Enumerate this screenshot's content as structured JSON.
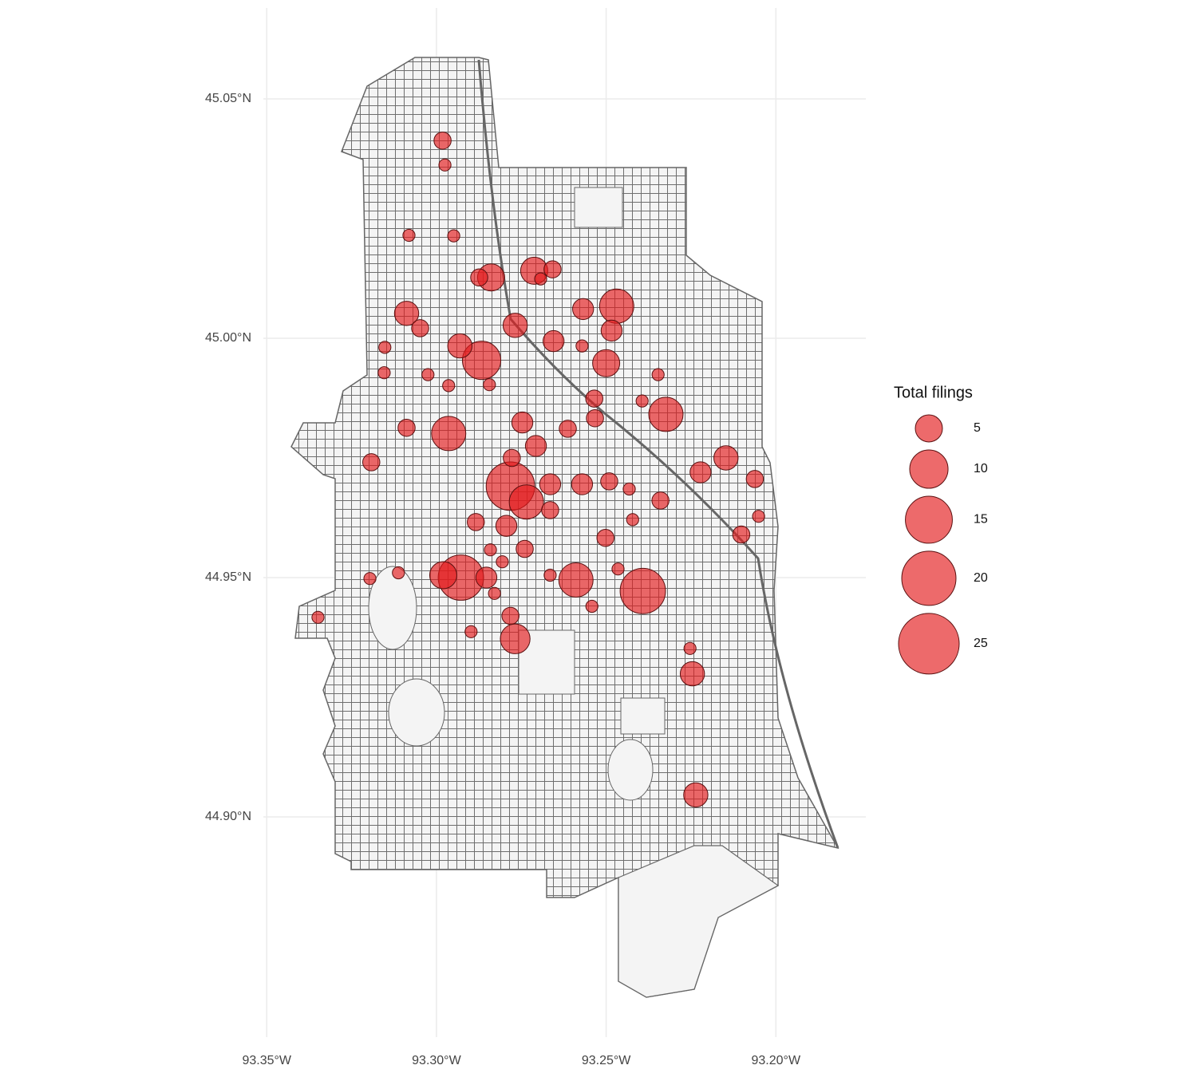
{
  "chart_data": {
    "type": "scatter",
    "x": [
      -93.2982,
      -93.2975,
      -93.3081,
      -93.2949,
      -93.2839,
      -93.2874,
      -93.2712,
      -93.2658,
      -93.2693,
      -93.2469,
      -93.2568,
      -93.3088,
      -93.3048,
      -93.2768,
      -93.2655,
      -93.2484,
      -93.2867,
      -93.2931,
      -93.25,
      -93.2571,
      -93.3152,
      -93.3154,
      -93.3025,
      -93.2964,
      -93.2844,
      -93.2324,
      -93.2347,
      -93.2535,
      -93.2394,
      -93.2964,
      -93.3088,
      -93.3192,
      -93.2747,
      -93.2613,
      -93.2147,
      -93.2222,
      -93.2062,
      -93.2782,
      -93.2735,
      -93.2665,
      -93.2571,
      -93.2491,
      -93.2432,
      -93.234,
      -93.2794,
      -93.2884,
      -93.2665,
      -93.2502,
      -93.2422,
      -93.2051,
      -93.2102,
      -93.2928,
      -93.298,
      -93.2853,
      -93.2589,
      -93.2392,
      -93.3112,
      -93.3196,
      -93.3349,
      -93.2768,
      -93.2782,
      -93.2898,
      -93.2542,
      -93.2465,
      -93.2246,
      -93.2253,
      -93.2236,
      -93.274,
      -93.2665,
      -93.2829,
      -93.2707,
      -93.2778,
      -93.2841,
      -93.2806,
      -93.2533
    ],
    "y": [
      45.0413,
      45.0362,
      45.0215,
      45.0214,
      45.0127,
      45.0127,
      45.0141,
      45.0144,
      45.0124,
      45.0067,
      45.0061,
      45.0052,
      45.0021,
      45.0027,
      44.9994,
      45.0016,
      44.9954,
      44.9984,
      44.9948,
      44.9984,
      44.9981,
      44.9928,
      44.9924,
      44.9901,
      44.9903,
      44.9841,
      44.9924,
      44.9874,
      44.9869,
      44.9801,
      44.9813,
      44.9741,
      44.9824,
      44.9811,
      44.975,
      44.972,
      44.9706,
      44.9691,
      44.9658,
      44.9695,
      44.9695,
      44.9701,
      44.9685,
      44.9661,
      44.9608,
      44.9616,
      44.9641,
      44.9583,
      44.9621,
      44.9628,
      44.959,
      44.95,
      44.9505,
      44.95,
      44.9495,
      44.9472,
      44.951,
      44.9498,
      44.9417,
      44.9372,
      44.942,
      44.9387,
      44.944,
      44.9518,
      44.9299,
      44.9352,
      44.9046,
      44.956,
      44.9505,
      44.9467,
      44.9775,
      44.975,
      44.9558,
      44.9533,
      44.9833
    ],
    "sizes": [
      2,
      1,
      1,
      1,
      5,
      2,
      5,
      2,
      1,
      8,
      3,
      4,
      2,
      4,
      3,
      3,
      10,
      4,
      5,
      1,
      1,
      1,
      1,
      1,
      1,
      8,
      1,
      2,
      1,
      8,
      2,
      2,
      3,
      2,
      4,
      3,
      2,
      16,
      8,
      3,
      3,
      2,
      1,
      2,
      3,
      2,
      2,
      2,
      1,
      1,
      2,
      14,
      5,
      3,
      8,
      14,
      1,
      1,
      1,
      6,
      2,
      1,
      1,
      1,
      4,
      1,
      4,
      2,
      1,
      1,
      3,
      2,
      1,
      1,
      2
    ],
    "color": "#e41a1c",
    "xlim": [
      -93.351,
      -93.1735
    ],
    "ylim": [
      44.854,
      45.069
    ],
    "xticks": [
      {
        "value": -93.35,
        "label": "93.35°W"
      },
      {
        "value": -93.3,
        "label": "93.30°W"
      },
      {
        "value": -93.25,
        "label": "93.25°W"
      },
      {
        "value": -93.2,
        "label": "93.20°W"
      }
    ],
    "yticks": [
      {
        "value": 44.9,
        "label": "44.90°N"
      },
      {
        "value": 44.95,
        "label": "44.95°N"
      },
      {
        "value": 45.0,
        "label": "45.00°N"
      },
      {
        "value": 45.05,
        "label": "45.05°N"
      }
    ],
    "grid": true,
    "size_legend": {
      "title": "Total filings",
      "values": [
        5,
        10,
        15,
        20,
        25
      ]
    }
  }
}
